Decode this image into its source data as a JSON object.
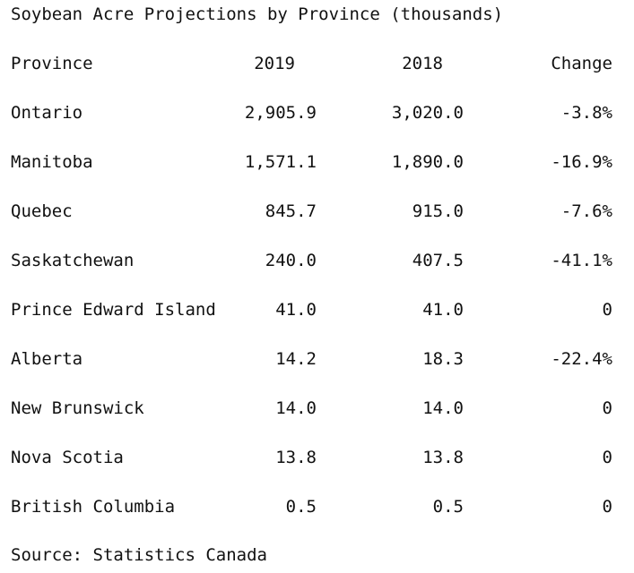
{
  "chart_data": {
    "type": "table",
    "title": "Soybean Acre Projections by Province (thousands)",
    "columns": [
      "Province",
      "2019",
      "2018",
      "Change"
    ],
    "rows": [
      {
        "province": "Ontario",
        "y2019": "2,905.9",
        "y2018": "3,020.0",
        "change": "-3.8%"
      },
      {
        "province": "Manitoba",
        "y2019": "1,571.1",
        "y2018": "1,890.0",
        "change": "-16.9%"
      },
      {
        "province": "Quebec",
        "y2019": "845.7",
        "y2018": "915.0",
        "change": "-7.6%"
      },
      {
        "province": "Saskatchewan",
        "y2019": "240.0",
        "y2018": "407.5",
        "change": "-41.1%"
      },
      {
        "province": "Prince Edward Island",
        "y2019": "41.0",
        "y2018": "41.0",
        "change": "0"
      },
      {
        "province": "Alberta",
        "y2019": "14.2",
        "y2018": "18.3",
        "change": "-22.4%"
      },
      {
        "province": "New Brunswick",
        "y2019": "14.0",
        "y2018": "14.0",
        "change": "0"
      },
      {
        "province": "Nova Scotia",
        "y2019": "13.8",
        "y2018": "13.8",
        "change": "0"
      },
      {
        "province": "British Columbia",
        "y2019": "0.5",
        "y2018": "0.5",
        "change": "0"
      }
    ],
    "source": "Source: Statistics Canada"
  }
}
